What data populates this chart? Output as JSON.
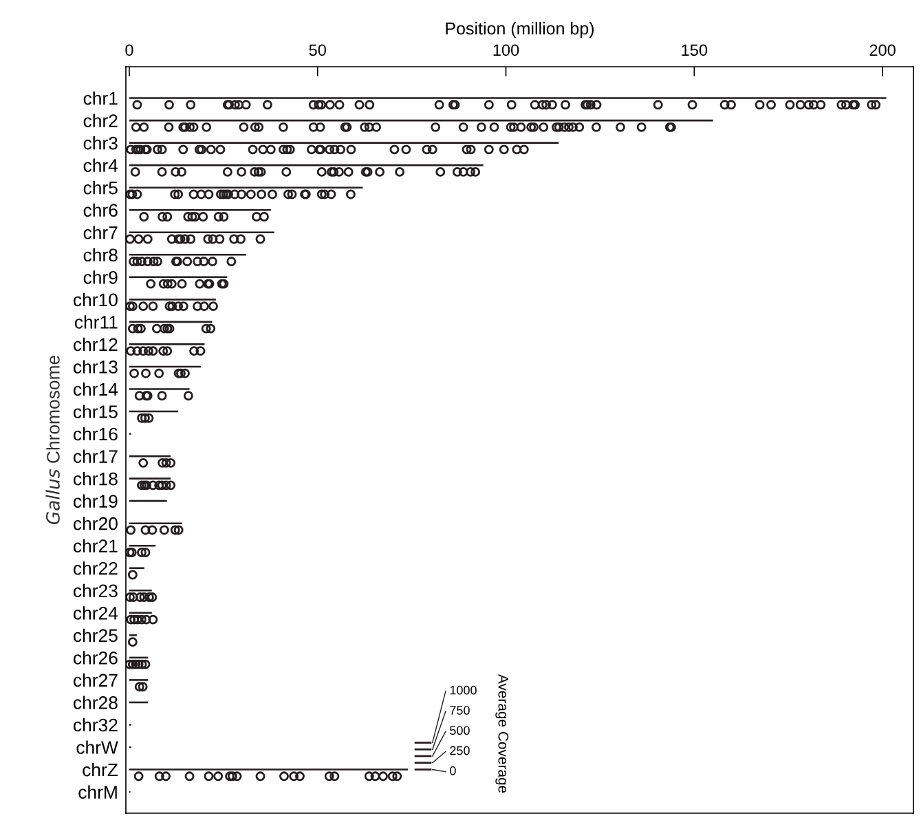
{
  "chart_data": {
    "type": "bar",
    "orientation": "horizontal",
    "xlabel": "Position (million bp)",
    "ylabel": "Gallus Chromosome",
    "categories": [
      "chr1",
      "chr2",
      "chr3",
      "chr4",
      "chr5",
      "chr6",
      "chr7",
      "chr8",
      "chr9",
      "chr10",
      "chr11",
      "chr12",
      "chr13",
      "chr14",
      "chr15",
      "chr16",
      "chr17",
      "chr18",
      "chr19",
      "chr20",
      "chr21",
      "chr22",
      "chr23",
      "chr24",
      "chr25",
      "chr26",
      "chr27",
      "chr28",
      "chr32",
      "chrW",
      "chrZ",
      "chrM"
    ],
    "xlim": [
      -0.9,
      208.2
    ],
    "xticks": [
      0,
      50,
      100,
      150,
      200
    ],
    "grid": false,
    "marker": "circle",
    "series": [
      {
        "color": "#231f20",
        "values": [
          201,
          155,
          114,
          94,
          62,
          37.6,
          38.5,
          31,
          26,
          23,
          22,
          20,
          19,
          16,
          13,
          0.5,
          11,
          11,
          10,
          14,
          7,
          4,
          6,
          6,
          2,
          5,
          5,
          5,
          0.5,
          0.5,
          74,
          0.3
        ]
      },
      {
        "type": "scatter",
        "color": "#231f20",
        "x": [
          "chr1",
          "chr1",
          "chr1",
          "chr1",
          "chr1",
          "chr1",
          "chr1",
          "chr1",
          "chr1",
          "chr1",
          "chr1",
          "chr1",
          "chr1",
          "chr1",
          "chr1",
          "chr1",
          "chr1",
          "chr1",
          "chr1",
          "chr1",
          "chr1",
          "chr1",
          "chr1",
          "chr1",
          "chr1",
          "chr1",
          "chr1",
          "chr1",
          "chr1",
          "chr1",
          "chr1",
          "chr1",
          "chr1",
          "chr1",
          "chr1",
          "chr1",
          "chr1",
          "chr1",
          "chr1",
          "chr1",
          "chr1",
          "chr1",
          "chr1",
          "chr1",
          "chr1",
          "chr1",
          "chr1",
          "chr2",
          "chr2",
          "chr2",
          "chr2",
          "chr2",
          "chr2",
          "chr2",
          "chr2",
          "chr2",
          "chr2",
          "chr2",
          "chr2",
          "chr2",
          "chr2",
          "chr2",
          "chr2",
          "chr2",
          "chr2",
          "chr2",
          "chr2",
          "chr2",
          "chr2",
          "chr2",
          "chr2",
          "chr2",
          "chr2",
          "chr2",
          "chr2",
          "chr2",
          "chr2",
          "chr2",
          "chr2",
          "chr2",
          "chr2",
          "chr2",
          "chr2",
          "chr2",
          "chr2",
          "chr2",
          "chr2",
          "chr3",
          "chr3",
          "chr3",
          "chr3",
          "chr3",
          "chr3",
          "chr3",
          "chr3",
          "chr3",
          "chr3",
          "chr3",
          "chr3",
          "chr3",
          "chr3",
          "chr3",
          "chr3",
          "chr3",
          "chr3",
          "chr3",
          "chr3",
          "chr3",
          "chr3",
          "chr3",
          "chr3",
          "chr3",
          "chr3",
          "chr3",
          "chr3",
          "chr3",
          "chr3",
          "chr3",
          "chr3",
          "chr3",
          "chr3",
          "chr3",
          "chr3",
          "chr4",
          "chr4",
          "chr4",
          "chr4",
          "chr4",
          "chr4",
          "chr4",
          "chr4",
          "chr4",
          "chr4",
          "chr4",
          "chr4",
          "chr4",
          "chr4",
          "chr4",
          "chr4",
          "chr4",
          "chr4",
          "chr4",
          "chr4",
          "chr4",
          "chr4",
          "chr4",
          "chr4",
          "chr5",
          "chr5",
          "chr5",
          "chr5",
          "chr5",
          "chr5",
          "chr5",
          "chr5",
          "chr5",
          "chr5",
          "chr5",
          "chr5",
          "chr5",
          "chr5",
          "chr5",
          "chr5",
          "chr5",
          "chr5",
          "chr5",
          "chr5",
          "chr5",
          "chr5",
          "chr5",
          "chr5",
          "chr5",
          "chr6",
          "chr6",
          "chr6",
          "chr6",
          "chr6",
          "chr6",
          "chr6",
          "chr6",
          "chr6",
          "chr6",
          "chr6",
          "chr7",
          "chr7",
          "chr7",
          "chr7",
          "chr7",
          "chr7",
          "chr7",
          "chr7",
          "chr7",
          "chr7",
          "chr7",
          "chr7",
          "chr7",
          "chr7",
          "chr8",
          "chr8",
          "chr8",
          "chr8",
          "chr8",
          "chr8",
          "chr8",
          "chr8",
          "chr8",
          "chr8",
          "chr8",
          "chr8",
          "chr8",
          "chr9",
          "chr9",
          "chr9",
          "chr9",
          "chr9",
          "chr9",
          "chr9",
          "chr9",
          "chr9",
          "chr9",
          "chr10",
          "chr10",
          "chr10",
          "chr10",
          "chr10",
          "chr10",
          "chr10",
          "chr10",
          "chr10",
          "chr10",
          "chr10",
          "chr11",
          "chr11",
          "chr11",
          "chr11",
          "chr11",
          "chr11",
          "chr11",
          "chr11",
          "chr11",
          "chr12",
          "chr12",
          "chr12",
          "chr12",
          "chr12",
          "chr12",
          "chr12",
          "chr12",
          "chr12",
          "chr13",
          "chr13",
          "chr13",
          "chr13",
          "chr13",
          "chr13",
          "chr14",
          "chr14",
          "chr14",
          "chr14",
          "chr14",
          "chr15",
          "chr15",
          "chr15",
          "chr17",
          "chr17",
          "chr17",
          "chr17",
          "chr18",
          "chr18",
          "chr18",
          "chr18",
          "chr18",
          "chr18",
          "chr18",
          "chr18",
          "chr20",
          "chr20",
          "chr20",
          "chr20",
          "chr20",
          "chr20",
          "chr21",
          "chr21",
          "chr21",
          "chr21",
          "chr22",
          "chr23",
          "chr23",
          "chr23",
          "chr23",
          "chr23",
          "chr23",
          "chr24",
          "chr24",
          "chr24",
          "chr24",
          "chr24",
          "chr24",
          "chr25",
          "chr26",
          "chr26",
          "chr26",
          "chr26",
          "chr26",
          "chr26",
          "chr27",
          "chr27",
          "chrZ",
          "chrZ",
          "chrZ",
          "chrZ",
          "chrZ",
          "chrZ",
          "chrZ",
          "chrZ",
          "chrZ",
          "chrZ",
          "chrZ",
          "chrZ",
          "chrZ",
          "chrZ",
          "chrZ",
          "chrZ",
          "chrZ",
          "chrZ",
          "chrZ",
          "chrZ"
        ],
        "values": [
          2.1,
          10.6,
          16.3,
          26.1,
          26.5,
          28.1,
          29.1,
          31.0,
          36.7,
          48.9,
          50.3,
          51.0,
          53.3,
          55.8,
          61.1,
          63.8,
          82.3,
          86.0,
          86.5,
          95.5,
          101.5,
          107.7,
          109.7,
          110.7,
          112.3,
          115.8,
          121.1,
          121.6,
          122.5,
          124.1,
          140.4,
          149.5,
          158.1,
          159.8,
          167.4,
          170.4,
          175.4,
          178.2,
          180.4,
          181.7,
          183.6,
          189.1,
          190.3,
          192.2,
          192.7,
          197.1,
          198.2,
          1.8,
          3.9,
          10.5,
          14.3,
          14.8,
          16.1,
          17.1,
          20.5,
          30.4,
          33.4,
          34.4,
          40.9,
          48.9,
          50.7,
          57.3,
          57.8,
          62.5,
          63.7,
          65.6,
          81.3,
          88.7,
          93.5,
          96.9,
          101.3,
          102.1,
          104.0,
          106.7,
          107.4,
          110.0,
          113.4,
          114.1,
          115.5,
          116.7,
          117.8,
          119.5,
          124.0,
          130.4,
          136.0,
          143.5,
          143.9,
          0.4,
          1.8,
          2.4,
          3.0,
          4.3,
          4.7,
          7.5,
          8.7,
          14.3,
          18.6,
          19.2,
          21.7,
          24.2,
          32.8,
          35.5,
          37.6,
          40.9,
          41.9,
          42.7,
          48.4,
          50.5,
          50.8,
          53.2,
          54.5,
          56.1,
          58.9,
          70.4,
          73.5,
          79.0,
          80.5,
          89.6,
          90.7,
          95.5,
          99.5,
          102.9,
          104.8,
          1.6,
          8.7,
          12.3,
          13.9,
          26.1,
          29.8,
          33.3,
          34.3,
          35.0,
          41.7,
          51.1,
          53.7,
          54.3,
          55.7,
          58.2,
          62.8,
          63.3,
          66.5,
          71.8,
          82.6,
          87.1,
          88.7,
          90.6,
          91.9,
          0.2,
          0.8,
          2.1,
          12.1,
          13.0,
          17.1,
          19.1,
          21.1,
          24.3,
          25.0,
          25.7,
          26.3,
          28.0,
          29.8,
          32.3,
          35.1,
          38.0,
          42.2,
          43.2,
          46.6,
          46.9,
          51.1,
          51.9,
          53.6,
          58.8,
          3.9,
          8.8,
          10.1,
          15.6,
          16.7,
          17.5,
          19.6,
          23.7,
          25.1,
          33.8,
          35.8,
          0.2,
          2.5,
          4.9,
          11.3,
          13.1,
          13.6,
          14.8,
          16.3,
          20.9,
          22.2,
          24.0,
          27.8,
          29.6,
          34.8,
          1.1,
          2.1,
          3.3,
          4.9,
          6.5,
          7.5,
          12.4,
          12.8,
          15.4,
          18.1,
          19.8,
          22.1,
          27.1,
          5.7,
          9.1,
          10.2,
          11.3,
          14.0,
          18.7,
          20.9,
          21.3,
          24.6,
          25.1,
          0.2,
          0.9,
          3.7,
          6.3,
          10.7,
          11.4,
          13.0,
          14.4,
          18.1,
          19.9,
          22.3,
          0.9,
          2.3,
          3.1,
          7.3,
          9.3,
          10.1,
          10.7,
          20.4,
          21.6,
          0.4,
          2.1,
          3.7,
          5.1,
          6.3,
          9.0,
          10.1,
          17.2,
          18.9,
          1.3,
          4.4,
          7.9,
          13.1,
          13.7,
          14.8,
          2.7,
          4.5,
          4.9,
          8.7,
          15.7,
          3.3,
          4.2,
          5.2,
          3.7,
          8.8,
          9.8,
          11.0,
          3.3,
          4.0,
          4.6,
          6.3,
          7.9,
          8.7,
          9.8,
          11.0,
          0.4,
          4.3,
          6.1,
          9.3,
          12.2,
          13.1,
          0.1,
          0.7,
          3.3,
          4.3,
          0.9,
          0.2,
          1.1,
          2.9,
          3.9,
          5.3,
          6.1,
          0.4,
          1.3,
          2.2,
          3.3,
          4.5,
          6.3,
          0.9,
          0.1,
          0.9,
          1.7,
          2.5,
          3.4,
          4.3,
          2.7,
          3.6,
          2.5,
          8.0,
          9.7,
          16.0,
          21.1,
          23.6,
          26.7,
          27.4,
          28.6,
          34.8,
          41.1,
          43.7,
          45.3,
          53.1,
          54.5,
          63.7,
          65.3,
          67.4,
          69.9,
          71.1
        ]
      }
    ],
    "annotations": [
      "Average Coverage",
      "0",
      "250",
      "500",
      "750",
      "1000"
    ]
  }
}
